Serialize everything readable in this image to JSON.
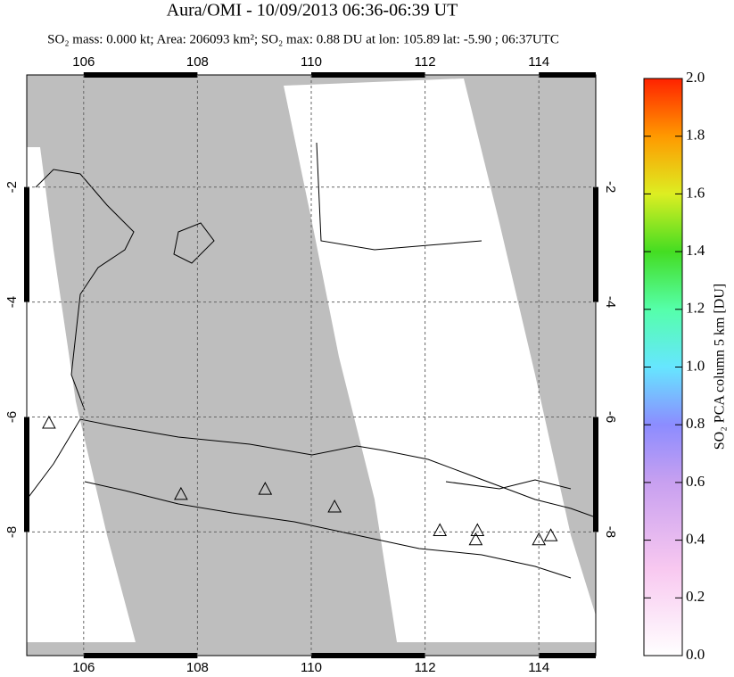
{
  "chart_data": {
    "type": "map",
    "title": "Aura/OMI - 10/09/2013 06:36-06:39 UT",
    "subtitle": "SO₂ mass: 0.000 kt; Area: 206093 km²; SO₂ max: 0.88 DU at lon: 105.89 lat: -5.90 ; 06:37UTC",
    "xlim": [
      105,
      115
    ],
    "ylim": [
      -10.15,
      -0.05
    ],
    "xticks": [
      106,
      108,
      110,
      112,
      114
    ],
    "yticks": [
      -2,
      -4,
      -6,
      -8
    ],
    "grid": true,
    "volcanoes": {
      "lon": [
        105.39,
        107.71,
        109.19,
        110.41,
        112.26,
        112.92,
        112.89,
        114.0,
        114.21
      ],
      "lat": [
        -6.1,
        -7.34,
        -7.25,
        -7.56,
        -7.97,
        -7.97,
        -8.13,
        -8.13,
        -8.06
      ]
    },
    "colorbar": {
      "label": "SO₂ PCA column 5 km [DU]",
      "lim": [
        0,
        2
      ],
      "ticks": [
        {
          "value": 0,
          "label": "0.0"
        },
        0.2,
        0.4,
        0.6,
        0.8,
        {
          "value": 1,
          "label": "1.0"
        },
        1.2,
        1.4,
        1.6,
        1.8,
        {
          "value": 2,
          "label": "2.0"
        }
      ]
    }
  }
}
